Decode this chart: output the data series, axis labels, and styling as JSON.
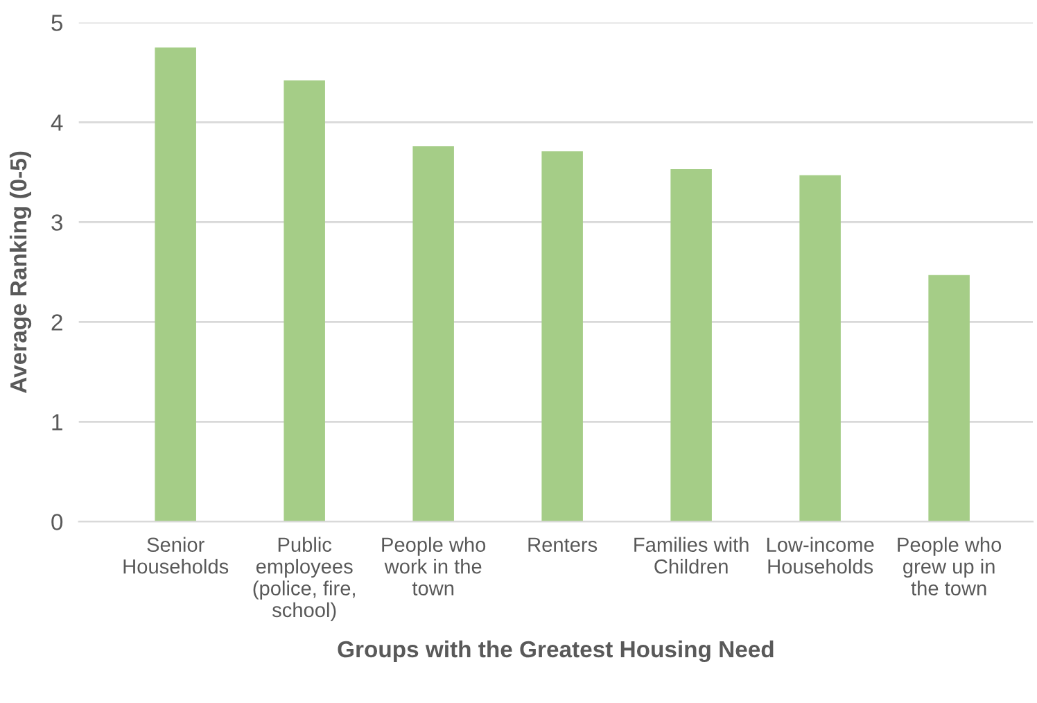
{
  "chart_data": {
    "type": "bar",
    "xlabel": "Groups with the Greatest Housing Need",
    "ylabel": "Average Ranking (0-5)",
    "categories": [
      "Senior\nHouseholds",
      "Public\nemployees\n(police, fire,\nschool)",
      "People who\nwork in the\ntown",
      "Renters",
      "Families with\nChildren",
      "Low-income\nHouseholds",
      "People who\ngrew up in\nthe town"
    ],
    "values": [
      4.75,
      4.42,
      3.76,
      3.71,
      3.53,
      3.47,
      2.47
    ],
    "color": "#a5cd87",
    "ylim": [
      0,
      5
    ],
    "yticks": [
      0,
      1,
      2,
      3,
      4,
      5
    ],
    "grid": "y"
  }
}
